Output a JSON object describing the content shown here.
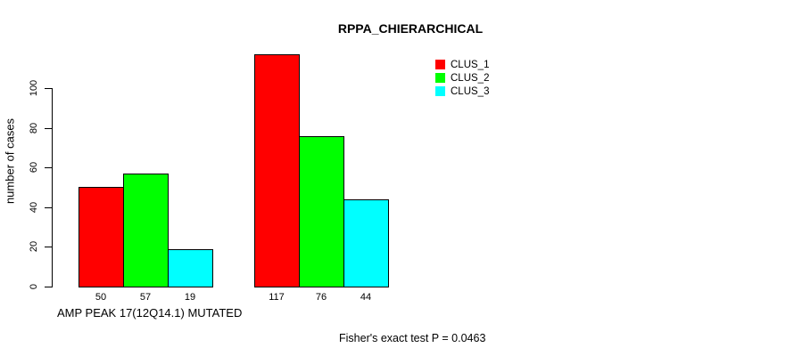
{
  "chart": {
    "title": "RPPA_CHIERARCHICAL",
    "ylabel": "number of cases",
    "group1_label": "AMP PEAK 17(12Q14.1) MUTATED",
    "footer": "Fisher's exact test P = 0.0463"
  },
  "chart_data": {
    "type": "bar",
    "title": "RPPA_CHIERARCHICAL",
    "xlabel": "AMP PEAK 17(12Q14.1) MUTATED",
    "ylabel": "number of cases",
    "ylim": [
      0,
      100
    ],
    "yticks": [
      0,
      20,
      40,
      60,
      80,
      100
    ],
    "grid": false,
    "legend_position": "top-right",
    "categories": [
      "AMP PEAK 17(12Q14.1) MUTATED",
      ""
    ],
    "series": [
      {
        "name": "CLUS_1",
        "color": "#ff0000",
        "values": [
          50,
          117
        ]
      },
      {
        "name": "CLUS_2",
        "color": "#00ff00",
        "values": [
          57,
          76
        ]
      },
      {
        "name": "CLUS_3",
        "color": "#00ffff",
        "values": [
          19,
          44
        ]
      }
    ],
    "bar_value_labels": [
      [
        50,
        57,
        19
      ],
      [
        117,
        76,
        44
      ]
    ],
    "annotation": "Fisher's exact test P = 0.0463"
  }
}
